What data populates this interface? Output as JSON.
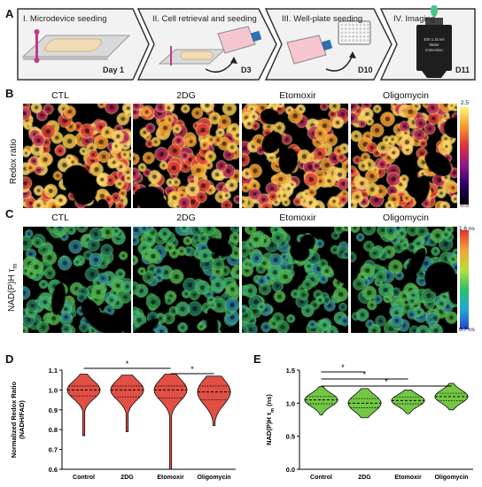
{
  "panels": {
    "A": "A",
    "B": "B",
    "C": "C",
    "D": "D",
    "E": "E"
  },
  "workflow": {
    "steps": [
      {
        "title": "I. Microdevice seeding",
        "day": "Day 1"
      },
      {
        "title": "II. Cell retrieval and seeding",
        "day": "D3"
      },
      {
        "title": "III. Well-plate seeding",
        "day": "D10"
      },
      {
        "title": "IV. Imaging",
        "day": "D11"
      }
    ],
    "objective_lines": [
      "40X 1.15 NA",
      "Water",
      "immersion"
    ]
  },
  "images": {
    "conditions": [
      "CTL",
      "2DG",
      "Etomoxir",
      "Oligomycin"
    ],
    "redox_label": "Redox ratio",
    "redox_colorbar": {
      "max": "2.5",
      "min": "0.0",
      "colors": [
        "#000000",
        "#2a0066",
        "#8a1a8a",
        "#e0303a",
        "#f49a2a",
        "#fff580"
      ]
    },
    "nadph_label_main": "NAD(P)H τ",
    "nadph_label_sub": "m",
    "nadph_colorbar": {
      "max": "1.6 ns",
      "min": "0.7 ns",
      "colors": [
        "#2a3fd0",
        "#23a7d8",
        "#2dc06a",
        "#b6e03a",
        "#f4a43a",
        "#e03030"
      ]
    }
  },
  "chart_data": [
    {
      "type": "violin",
      "ylabel": "Normalized Redox Ratio (NADH/FAD)",
      "categories": [
        "Control",
        "2DG",
        "Etomoxir",
        "Oligomycin"
      ],
      "ylim": [
        0.6,
        1.1
      ],
      "yticks": [
        "0.6",
        "0.7",
        "0.8",
        "0.9",
        "1.0",
        "1.1"
      ],
      "color": "#e0463c",
      "medians": [
        1.0,
        1.0,
        1.0,
        0.99
      ],
      "q1": [
        0.97,
        0.965,
        0.96,
        0.95
      ],
      "q3": [
        1.02,
        1.02,
        1.02,
        1.02
      ],
      "mins": [
        0.77,
        0.79,
        0.6,
        0.82
      ],
      "maxs": [
        1.08,
        1.075,
        1.08,
        1.07
      ],
      "significance": [
        {
          "from": 0,
          "to": 2,
          "label": "*"
        },
        {
          "from": 2,
          "to": 3,
          "label": "*"
        }
      ]
    },
    {
      "type": "violin",
      "ylabel": "NAD(P)H τ",
      "ylabel_sub": "m",
      "ylabel_unit": " (ns)",
      "categories": [
        "Control",
        "2DG",
        "Etomoxir",
        "Oligomycin"
      ],
      "ylim": [
        0.0,
        1.5
      ],
      "yticks": [
        "0.0",
        "0.5",
        "1.0",
        "1.5"
      ],
      "color": "#6cc53a",
      "medians": [
        1.05,
        1.0,
        1.04,
        1.1
      ],
      "q1": [
        0.99,
        0.93,
        0.99,
        1.04
      ],
      "q3": [
        1.1,
        1.07,
        1.09,
        1.15
      ],
      "mins": [
        0.82,
        0.78,
        0.84,
        0.9
      ],
      "maxs": [
        1.25,
        1.22,
        1.2,
        1.3
      ],
      "significance": [
        {
          "from": 0,
          "to": 1,
          "label": "*"
        },
        {
          "from": 0,
          "to": 2,
          "label": "*"
        },
        {
          "from": 0,
          "to": 3,
          "label": "*"
        }
      ]
    }
  ]
}
